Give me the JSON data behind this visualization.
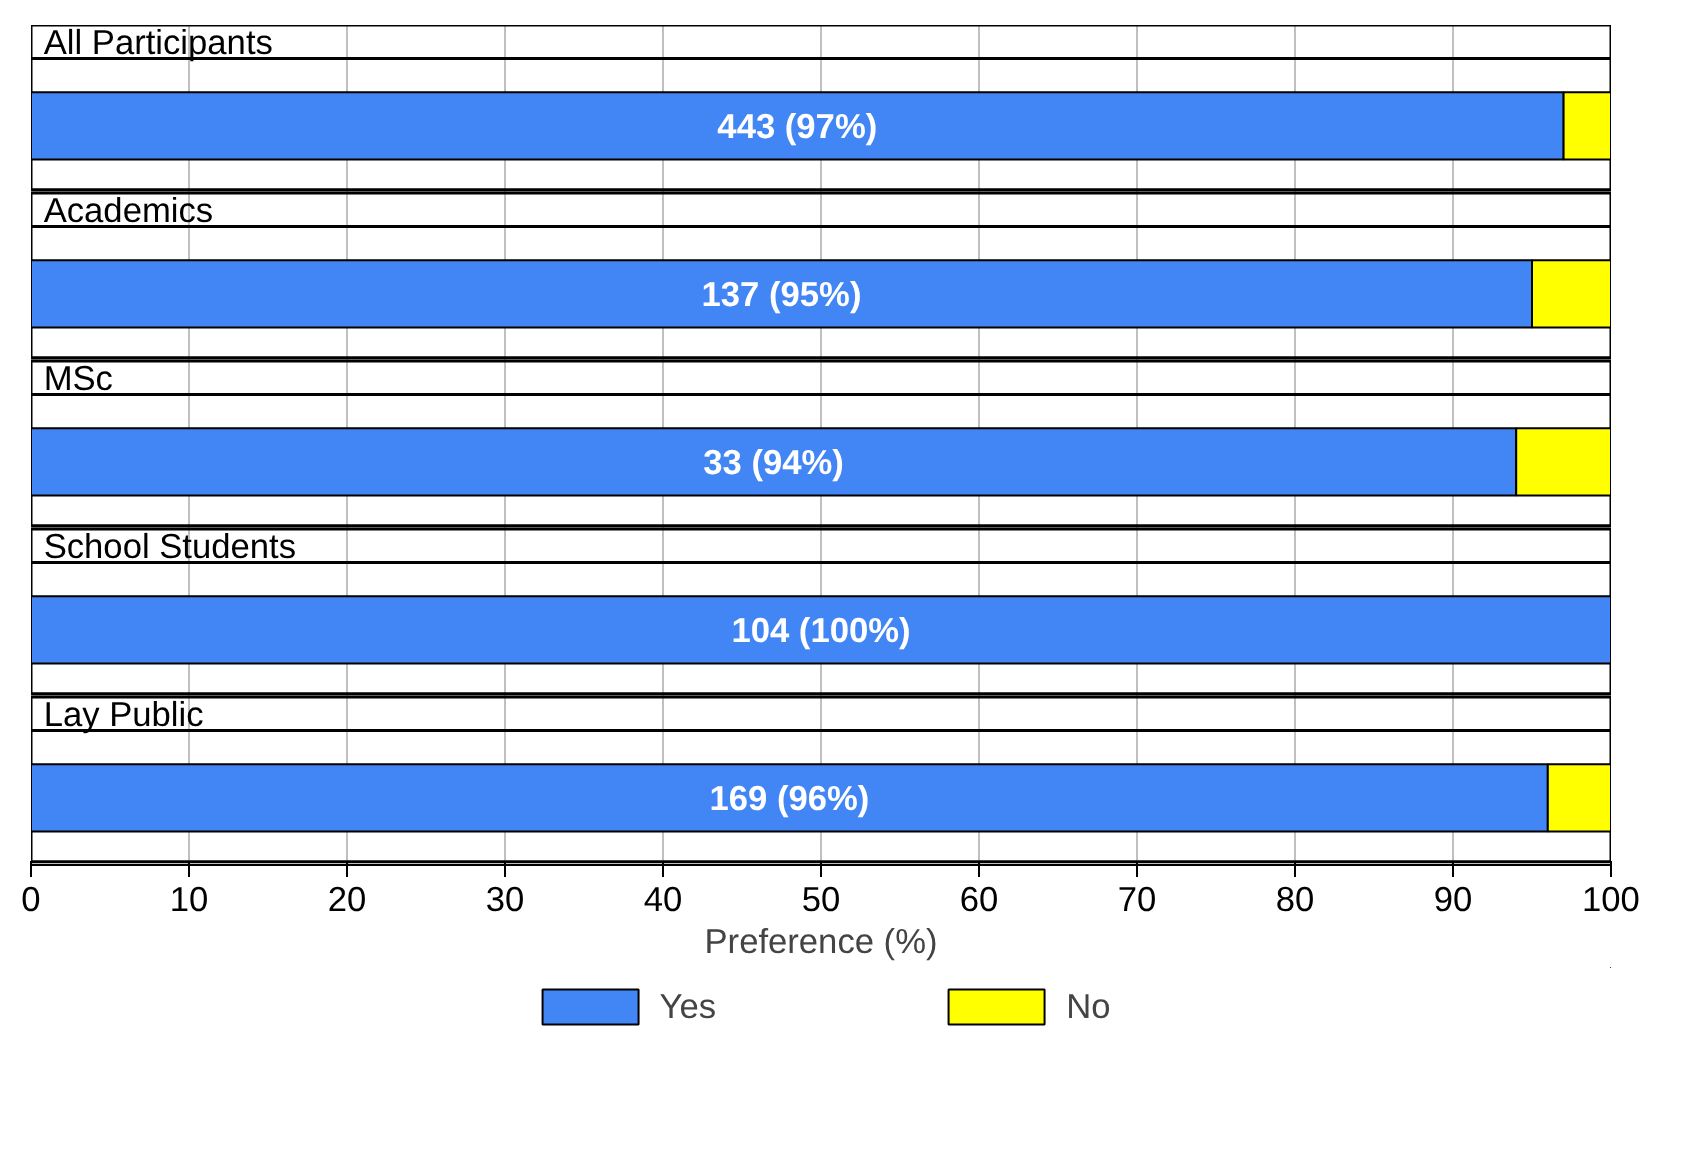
{
  "chart_data": {
    "type": "bar",
    "orientation": "horizontal",
    "stacked": true,
    "categories": [
      "All Participants",
      "Academics",
      "MSc",
      "School Students",
      "Lay Public"
    ],
    "series": [
      {
        "name": "Yes",
        "color": "#4285f4",
        "values": [
          97,
          95,
          94,
          100,
          96
        ],
        "value_labels": [
          "443 (97%)",
          "137 (95%)",
          "33 (94%)",
          "104 (100%)",
          "169 (96%)"
        ]
      },
      {
        "name": "No",
        "color": "#ffff00",
        "values": [
          3,
          5,
          6,
          0,
          4
        ]
      }
    ],
    "xlabel": "Preference (%)",
    "xlim": [
      0,
      100
    ],
    "xticks": [
      0,
      10,
      20,
      30,
      40,
      50,
      60,
      70,
      80,
      90,
      100
    ],
    "grid": "x",
    "legend": "bottom"
  }
}
